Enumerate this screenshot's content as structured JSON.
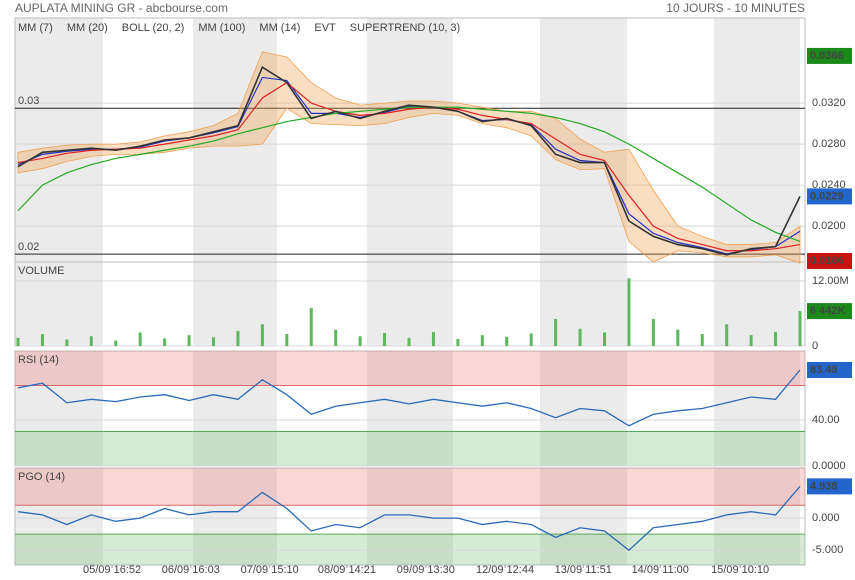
{
  "chart_data": [
    {
      "type": "line",
      "title": "AUPLATA MINING GR - abcbourse.com",
      "subtitle": "10 JOURS - 10 MINUTES",
      "x": [
        0,
        1,
        2,
        3,
        4,
        5,
        6,
        7,
        8,
        9,
        10,
        11,
        12,
        13,
        14,
        15,
        16,
        17,
        18,
        19,
        20,
        21,
        22,
        23,
        24,
        25,
        26,
        27,
        28,
        29,
        30,
        31,
        32
      ],
      "xlim": [
        0,
        32
      ],
      "xticks": [
        {
          "value": 3.85,
          "label": "05/09 16:52"
        },
        {
          "value": 7.07,
          "label": "06/09 16:03"
        },
        {
          "value": 10.3,
          "label": "07/09 15:10"
        },
        {
          "value": 13.46,
          "label": "08/09 14:21"
        },
        {
          "value": 16.69,
          "label": "09/09 13:30"
        },
        {
          "value": 19.93,
          "label": "12/09 12:44"
        },
        {
          "value": 23.13,
          "label": "13/09 11:51"
        },
        {
          "value": 26.28,
          "label": "14/09 11:00"
        },
        {
          "value": 29.55,
          "label": "15/09 10:10"
        }
      ],
      "ylim": [
        0.0165,
        0.0403
      ],
      "yticks": [
        {
          "value": 0.032,
          "label": "0.0320"
        },
        {
          "value": 0.028,
          "label": "0.0280"
        },
        {
          "value": 0.024,
          "label": "0.0240"
        },
        {
          "value": 0.02,
          "label": "0.0200"
        }
      ],
      "grid": true,
      "values": [
        0.0258,
        0.0272,
        0.0274,
        0.0276,
        0.0274,
        0.0278,
        0.0284,
        0.0286,
        0.0292,
        0.0298,
        0.0355,
        0.034,
        0.0305,
        0.0312,
        0.0305,
        0.0312,
        0.0318,
        0.0316,
        0.0312,
        0.0302,
        0.0305,
        0.0298,
        0.027,
        0.0262,
        0.0262,
        0.0205,
        0.019,
        0.0182,
        0.0178,
        0.0172,
        0.0178,
        0.018,
        0.0229
      ],
      "color": "#333333",
      "series": [
        {
          "name": "MM (7)",
          "color": "#2233cc",
          "values": [
            0.026,
            0.027,
            0.0273,
            0.0275,
            0.0275,
            0.0277,
            0.0283,
            0.0286,
            0.0291,
            0.0297,
            0.0345,
            0.0342,
            0.031,
            0.031,
            0.0306,
            0.0311,
            0.0317,
            0.0316,
            0.0312,
            0.0303,
            0.0304,
            0.0299,
            0.0275,
            0.0264,
            0.0262,
            0.0212,
            0.0193,
            0.0184,
            0.0179,
            0.0173,
            0.0177,
            0.018,
            0.0195
          ]
        },
        {
          "name": "MM (20)",
          "color": "#dd2222",
          "values": [
            0.0262,
            0.0266,
            0.0271,
            0.0274,
            0.0275,
            0.0276,
            0.028,
            0.0284,
            0.0288,
            0.0294,
            0.0325,
            0.034,
            0.032,
            0.0312,
            0.0308,
            0.031,
            0.0314,
            0.0316,
            0.0314,
            0.0308,
            0.0304,
            0.03,
            0.0285,
            0.027,
            0.0264,
            0.023,
            0.02,
            0.0188,
            0.0182,
            0.0176,
            0.0176,
            0.0178,
            0.0182
          ]
        },
        {
          "name": "BOLL (20, 2)",
          "color": "#f0a050",
          "upper": [
            0.0272,
            0.0276,
            0.0279,
            0.028,
            0.028,
            0.0282,
            0.0288,
            0.0292,
            0.0298,
            0.031,
            0.037,
            0.0365,
            0.034,
            0.0325,
            0.0318,
            0.032,
            0.0322,
            0.0322,
            0.032,
            0.0316,
            0.0312,
            0.0312,
            0.0305,
            0.0285,
            0.0272,
            0.0275,
            0.0235,
            0.02,
            0.019,
            0.0182,
            0.0182,
            0.0184,
            0.02
          ],
          "lower": [
            0.0252,
            0.0256,
            0.0263,
            0.0268,
            0.027,
            0.027,
            0.0272,
            0.0276,
            0.0278,
            0.0278,
            0.028,
            0.0315,
            0.03,
            0.0299,
            0.0298,
            0.03,
            0.0306,
            0.031,
            0.0308,
            0.03,
            0.0296,
            0.0288,
            0.0265,
            0.0255,
            0.0256,
            0.0185,
            0.0165,
            0.0176,
            0.0174,
            0.017,
            0.017,
            0.0172,
            0.0164
          ]
        },
        {
          "name": "MM (100)",
          "color": "#22aa22",
          "values": [
            0.0215,
            0.024,
            0.0252,
            0.026,
            0.0266,
            0.027,
            0.0274,
            0.0278,
            0.0283,
            0.029,
            0.0296,
            0.0302,
            0.0306,
            0.031,
            0.0312,
            0.0314,
            0.0316,
            0.0316,
            0.0316,
            0.0314,
            0.0312,
            0.031,
            0.0306,
            0.03,
            0.0292,
            0.028,
            0.0266,
            0.0252,
            0.0238,
            0.0222,
            0.0206,
            0.0194,
            0.0185
          ]
        },
        {
          "name": "MM (14)",
          "color": "#111111"
        },
        {
          "name": "EVT",
          "color": "#111111"
        },
        {
          "name": "SUPERTREND (10, 3)",
          "color": "#aa1122"
        }
      ],
      "levels": [
        {
          "value": 0.0315,
          "label": "0.03"
        },
        {
          "value": 0.01727,
          "label": "0.02"
        }
      ],
      "badges": [
        {
          "value": 0.0366,
          "color": "#1a8a1a"
        },
        {
          "value": 0.0229,
          "color": "#2266cc"
        },
        {
          "value": 0.0166,
          "color": "#cc1111"
        }
      ]
    },
    {
      "type": "bar",
      "title": "VOLUME",
      "ylim": [
        0,
        15500000
      ],
      "yticks": [
        0,
        {
          "value": 12000000,
          "label": "12.00M"
        }
      ],
      "values": [
        1500000,
        2200000,
        1200000,
        1800000,
        1000000,
        2500000,
        1400000,
        2000000,
        1600000,
        2800000,
        4000000,
        2200000,
        7000000,
        3000000,
        1800000,
        2400000,
        1500000,
        2600000,
        1300000,
        2000000,
        1700000,
        2300000,
        5000000,
        3200000,
        2500000,
        12500000,
        5000000,
        3000000,
        2200000,
        4000000,
        2000000,
        2600000,
        6442000
      ],
      "color": "#5cb85c",
      "badges": [
        {
          "value": 6442000,
          "label": "6 442K",
          "color": "#1a8a1a"
        }
      ]
    },
    {
      "type": "line",
      "title": "RSI (14)",
      "ylim": [
        0,
        100
      ],
      "yticks": [
        {
          "value": 0,
          "label": "0.0000"
        },
        {
          "value": 40,
          "label": "40.00"
        }
      ],
      "zones": [
        70,
        30
      ],
      "values": [
        68,
        72,
        55,
        58,
        56,
        60,
        62,
        57,
        62,
        58,
        75,
        62,
        45,
        52,
        55,
        58,
        54,
        58,
        55,
        52,
        55,
        50,
        42,
        50,
        48,
        35,
        45,
        48,
        50,
        55,
        60,
        58,
        83.49
      ],
      "color": "#2a6ab8",
      "badges": [
        {
          "value": 83.49,
          "color": "#2266cc"
        }
      ]
    },
    {
      "type": "line",
      "title": "PGO (14)",
      "ylim": [
        -7.3,
        7.8
      ],
      "yticks": [
        {
          "value": 0,
          "label": "0.000"
        },
        {
          "value": -5,
          "label": "-5.000"
        }
      ],
      "zones": [
        2,
        -2.5
      ],
      "values": [
        1,
        0.5,
        -1,
        0.5,
        -0.5,
        0,
        1.5,
        0.5,
        1,
        1,
        4,
        1.5,
        -2,
        -1,
        -1.5,
        0.5,
        0.5,
        0,
        0,
        -1,
        -0.5,
        -1,
        -3,
        -1.5,
        -2,
        -5,
        -1.5,
        -1,
        -0.5,
        0.5,
        1,
        0.5,
        4.938
      ],
      "color": "#2a6ab8",
      "badges": [
        {
          "value": 4.938,
          "color": "#2266cc"
        }
      ]
    }
  ]
}
